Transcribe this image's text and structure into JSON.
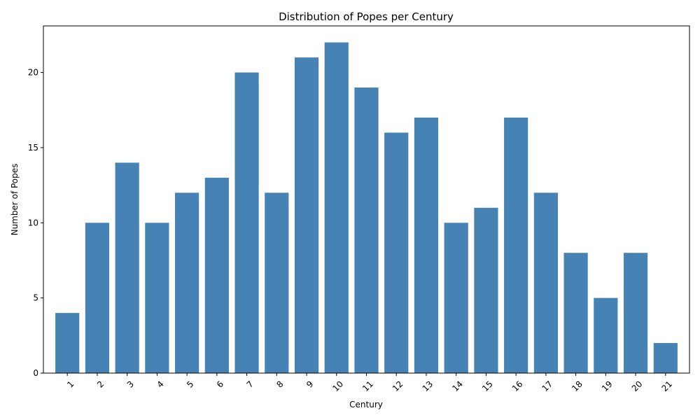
{
  "chart_data": {
    "type": "bar",
    "title": "Distribution of Popes per Century",
    "xlabel": "Century",
    "ylabel": "Number of Popes",
    "categories": [
      "1",
      "2",
      "3",
      "4",
      "5",
      "6",
      "7",
      "8",
      "9",
      "10",
      "11",
      "12",
      "13",
      "14",
      "15",
      "16",
      "17",
      "18",
      "19",
      "20",
      "21"
    ],
    "values": [
      4,
      10,
      14,
      10,
      12,
      13,
      20,
      12,
      21,
      22,
      19,
      16,
      17,
      10,
      11,
      17,
      12,
      8,
      5,
      8,
      2
    ],
    "ylim": [
      0,
      23.1
    ],
    "yticks": [
      0,
      5,
      10,
      15,
      20
    ],
    "bar_color": "#4682b4",
    "grid": false,
    "x_tick_rotation_deg": 45
  }
}
